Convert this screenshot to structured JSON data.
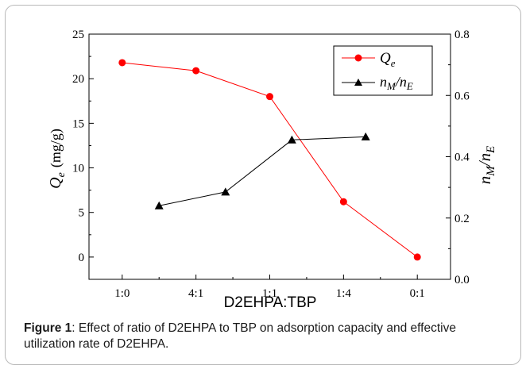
{
  "caption": {
    "label": "Figure 1",
    "text": ": Effect of ratio of D2EHPA to TBP on adsorption capacity and effective utilization rate of D2EHPA."
  },
  "chart_data": {
    "type": "line",
    "xlabel": "D2EHPA:TBP",
    "categories": [
      "1:0",
      "4:1",
      "1:1",
      "1:4",
      "0:1"
    ],
    "y_left": {
      "label_main": "Q",
      "label_sub": "e",
      "label_unit": "(mg/g)",
      "range": [
        -2.5,
        25
      ],
      "ticks": [
        "0",
        "5",
        "10",
        "15",
        "20",
        "25"
      ]
    },
    "y_right": {
      "label_n": "n",
      "label_M": "M",
      "label_slash": "/",
      "label_E": "E",
      "range": [
        0.0,
        0.8
      ],
      "ticks": [
        "0.0",
        "0.2",
        "0.4",
        "0.6",
        "0.8"
      ]
    },
    "series": [
      {
        "name_main": "Q",
        "name_sub": "e",
        "axis": "left",
        "color": "#ff0000",
        "marker": "circle",
        "x": [
          0,
          1,
          2,
          3,
          4
        ],
        "values": [
          21.8,
          20.9,
          18.0,
          6.2,
          0.0
        ]
      },
      {
        "name_n": "n",
        "name_M": "M",
        "name_slash": "/",
        "name_E": "E",
        "axis": "right",
        "color": "#000000",
        "marker": "triangle",
        "x": [
          0.5,
          1.4,
          2.3,
          3.3
        ],
        "values": [
          0.24,
          0.285,
          0.455,
          0.465
        ]
      }
    ],
    "legend_position": "top-right",
    "grid": false
  }
}
